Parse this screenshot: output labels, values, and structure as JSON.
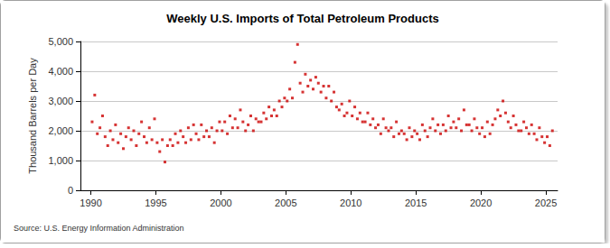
{
  "chart_data": {
    "type": "scatter",
    "title": "Weekly U.S. Imports of Total Petroleum Products",
    "y_label": "Thousand Barrels per Day",
    "source": "Source: U.S. Energy Information Administration",
    "color": "#cc0000",
    "marker": "square",
    "grid": true,
    "xlim": [
      1989.2,
      2025.9
    ],
    "xticks": [
      1990,
      1995,
      2000,
      2005,
      2010,
      2015,
      2020,
      2025
    ],
    "ylim": [
      0,
      5000
    ],
    "yticks": [
      0,
      {
        "value": 1000,
        "label": "1,000"
      },
      {
        "value": 2000,
        "label": "2,000"
      },
      {
        "value": 3000,
        "label": "3,000"
      },
      {
        "value": 4000,
        "label": "4,000"
      },
      {
        "value": 5000,
        "label": "5,000"
      }
    ],
    "x": [
      1990.1,
      1990.3,
      1990.5,
      1990.7,
      1990.9,
      1991.1,
      1991.3,
      1991.5,
      1991.7,
      1991.9,
      1992.1,
      1992.3,
      1992.5,
      1992.7,
      1992.9,
      1993.1,
      1993.3,
      1993.5,
      1993.7,
      1993.9,
      1994.1,
      1994.3,
      1994.5,
      1994.7,
      1994.9,
      1995.1,
      1995.3,
      1995.5,
      1995.7,
      1995.9,
      1996.1,
      1996.3,
      1996.5,
      1996.7,
      1996.9,
      1997.1,
      1997.3,
      1997.5,
      1997.7,
      1997.9,
      1998.1,
      1998.3,
      1998.5,
      1998.7,
      1998.9,
      1999.1,
      1999.3,
      1999.5,
      1999.7,
      1999.9,
      2000.1,
      2000.3,
      2000.5,
      2000.7,
      2000.9,
      2001.1,
      2001.3,
      2001.5,
      2001.7,
      2001.9,
      2002.1,
      2002.3,
      2002.5,
      2002.7,
      2002.9,
      2003.1,
      2003.3,
      2003.5,
      2003.7,
      2003.9,
      2004.1,
      2004.3,
      2004.5,
      2004.7,
      2004.9,
      2005.1,
      2005.3,
      2005.5,
      2005.7,
      2005.9,
      2006.1,
      2006.3,
      2006.5,
      2006.7,
      2006.9,
      2007.1,
      2007.3,
      2007.5,
      2007.7,
      2007.9,
      2008.1,
      2008.3,
      2008.5,
      2008.7,
      2008.9,
      2009.1,
      2009.3,
      2009.5,
      2009.7,
      2009.9,
      2010.1,
      2010.3,
      2010.5,
      2010.7,
      2010.9,
      2011.1,
      2011.3,
      2011.5,
      2011.7,
      2011.9,
      2012.1,
      2012.3,
      2012.5,
      2012.7,
      2012.9,
      2013.1,
      2013.3,
      2013.5,
      2013.7,
      2013.9,
      2014.1,
      2014.3,
      2014.5,
      2014.7,
      2014.9,
      2015.1,
      2015.3,
      2015.5,
      2015.7,
      2015.9,
      2016.1,
      2016.3,
      2016.5,
      2016.7,
      2016.9,
      2017.1,
      2017.3,
      2017.5,
      2017.7,
      2017.9,
      2018.1,
      2018.3,
      2018.5,
      2018.7,
      2018.9,
      2019.1,
      2019.3,
      2019.5,
      2019.7,
      2019.9,
      2020.1,
      2020.3,
      2020.5,
      2020.7,
      2020.9,
      2021.1,
      2021.3,
      2021.5,
      2021.7,
      2021.9,
      2022.1,
      2022.3,
      2022.5,
      2022.7,
      2022.9,
      2023.1,
      2023.3,
      2023.5,
      2023.7,
      2023.9,
      2024.1,
      2024.3,
      2024.5,
      2024.7,
      2024.9,
      2025.1,
      2025.3,
      2025.5
    ],
    "values": [
      2300,
      3200,
      1900,
      2100,
      2500,
      1800,
      1500,
      2000,
      1700,
      2200,
      1600,
      1900,
      1400,
      1800,
      2100,
      1700,
      2000,
      1500,
      1900,
      2300,
      1800,
      1600,
      2100,
      1700,
      2400,
      1600,
      1300,
      1700,
      950,
      1500,
      1700,
      1500,
      1900,
      1600,
      2000,
      1800,
      1600,
      2100,
      1700,
      2200,
      1900,
      1700,
      2200,
      1800,
      2000,
      1800,
      2100,
      1600,
      2000,
      2300,
      2000,
      2300,
      1900,
      2500,
      2100,
      2400,
      2100,
      2700,
      2300,
      2000,
      2200,
      2500,
      2000,
      2400,
      2300,
      2300,
      2600,
      2400,
      2800,
      2500,
      2700,
      2500,
      3000,
      2800,
      3100,
      3000,
      3400,
      3100,
      4300,
      4900,
      3600,
      3300,
      3900,
      3500,
      3700,
      3400,
      3800,
      3600,
      3300,
      3500,
      3100,
      3500,
      3000,
      3300,
      2800,
      2700,
      2900,
      2500,
      2600,
      3000,
      2500,
      2800,
      2400,
      2600,
      2300,
      2300,
      2600,
      2200,
      2400,
      2100,
      2200,
      1900,
      2400,
      2100,
      2000,
      2100,
      1800,
      2300,
      1900,
      2000,
      1900,
      1700,
      2100,
      1800,
      2000,
      1900,
      1700,
      2200,
      2000,
      1800,
      2100,
      2400,
      2000,
      2200,
      1900,
      2200,
      2000,
      2500,
      2100,
      2300,
      2100,
      2400,
      2000,
      2700,
      2200,
      2200,
      2000,
      2400,
      2100,
      1900,
      2100,
      1800,
      2300,
      1900,
      2200,
      2400,
      2700,
      2500,
      3000,
      2600,
      2300,
      2100,
      2500,
      2200,
      2000,
      2000,
      2300,
      2100,
      1900,
      2200,
      1900,
      1700,
      2100,
      1800,
      1600,
      1800,
      1500,
      2000
    ]
  }
}
